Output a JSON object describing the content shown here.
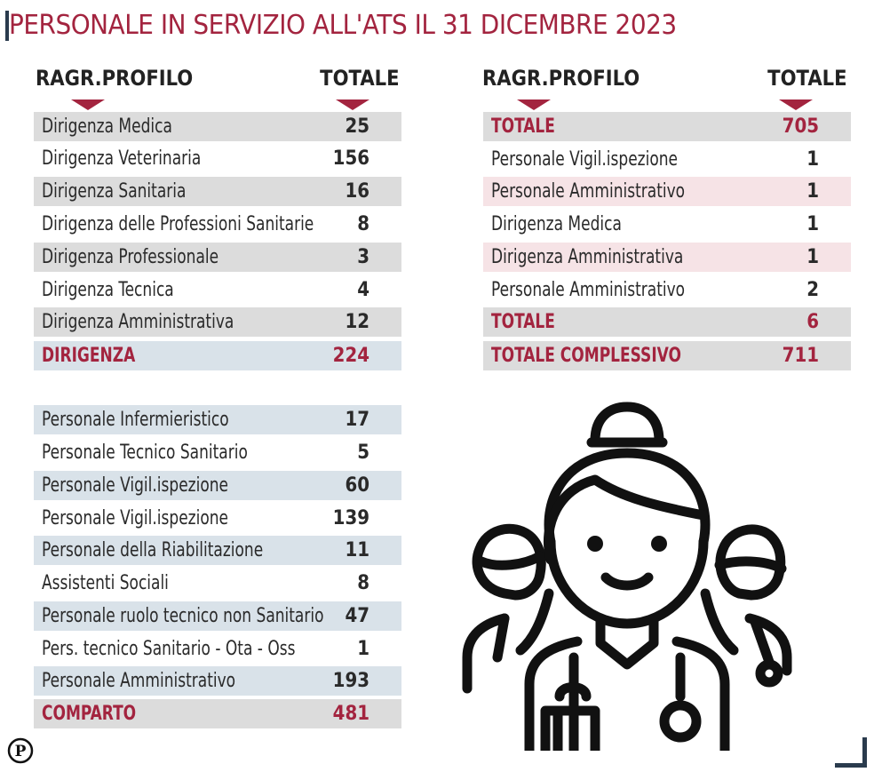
{
  "title": "PERSONALE IN SERVIZIO ALL'ATS IL 31 DICEMBRE 2023",
  "headers": {
    "left": {
      "profile": "RAGR.PROFILO",
      "total": "TOTALE"
    },
    "right": {
      "profile": "RAGR.PROFILO",
      "total": "TOTALE"
    }
  },
  "dirigenza": [
    {
      "label": "Dirigenza Medica",
      "value": "25"
    },
    {
      "label": "Dirigenza Veterinaria",
      "value": "156"
    },
    {
      "label": "Dirigenza Sanitaria",
      "value": "16"
    },
    {
      "label": "Dirigenza delle Professioni Sanitarie",
      "value": "8"
    },
    {
      "label": "Dirigenza Professionale",
      "value": "3"
    },
    {
      "label": "Dirigenza Tecnica",
      "value": "4"
    },
    {
      "label": "Dirigenza Amministrativa",
      "value": "12"
    },
    {
      "label": "DIRIGENZA",
      "value": "224"
    }
  ],
  "comparto": [
    {
      "label": "Personale Infermieristico",
      "value": "17"
    },
    {
      "label": "Personale Tecnico Sanitario",
      "value": "5"
    },
    {
      "label": "Personale Vigil.ispezione",
      "value": "60"
    },
    {
      "label": "Personale Vigil.ispezione",
      "value": "139"
    },
    {
      "label": "Personale della Riabilitazione",
      "value": "11"
    },
    {
      "label": "Assistenti Sociali",
      "value": "8"
    },
    {
      "label": "Personale ruolo tecnico non Sanitario",
      "value": "47"
    },
    {
      "label": "Pers. tecnico Sanitario - Ota - Oss",
      "value": "1"
    },
    {
      "label": "Personale Amministrativo",
      "value": "193"
    },
    {
      "label": "COMPARTO",
      "value": "481"
    }
  ],
  "right_table": [
    {
      "label": "TOTALE",
      "value": "705"
    },
    {
      "label": "Personale Vigil.ispezione",
      "value": "1"
    },
    {
      "label": "Personale Amministrativo",
      "value": "1"
    },
    {
      "label": "Dirigenza Medica",
      "value": "1"
    },
    {
      "label": "Dirigenza Amministrativa",
      "value": "1"
    },
    {
      "label": "Personale Amministrativo",
      "value": "2"
    },
    {
      "label": "TOTALE",
      "value": "6"
    },
    {
      "label": "TOTALE COMPLESSIVO",
      "value": "711"
    }
  ],
  "logo_letter": "P",
  "colors": {
    "accent": "#a3243f",
    "dark": "#2a3b4d",
    "row_grey": "#dcdcdc",
    "row_blue": "#d9e2e9",
    "row_pink": "#f6e3e6"
  },
  "icons": {
    "illustration": "medical-staff-icon",
    "logo": "publisher-logo-icon"
  }
}
